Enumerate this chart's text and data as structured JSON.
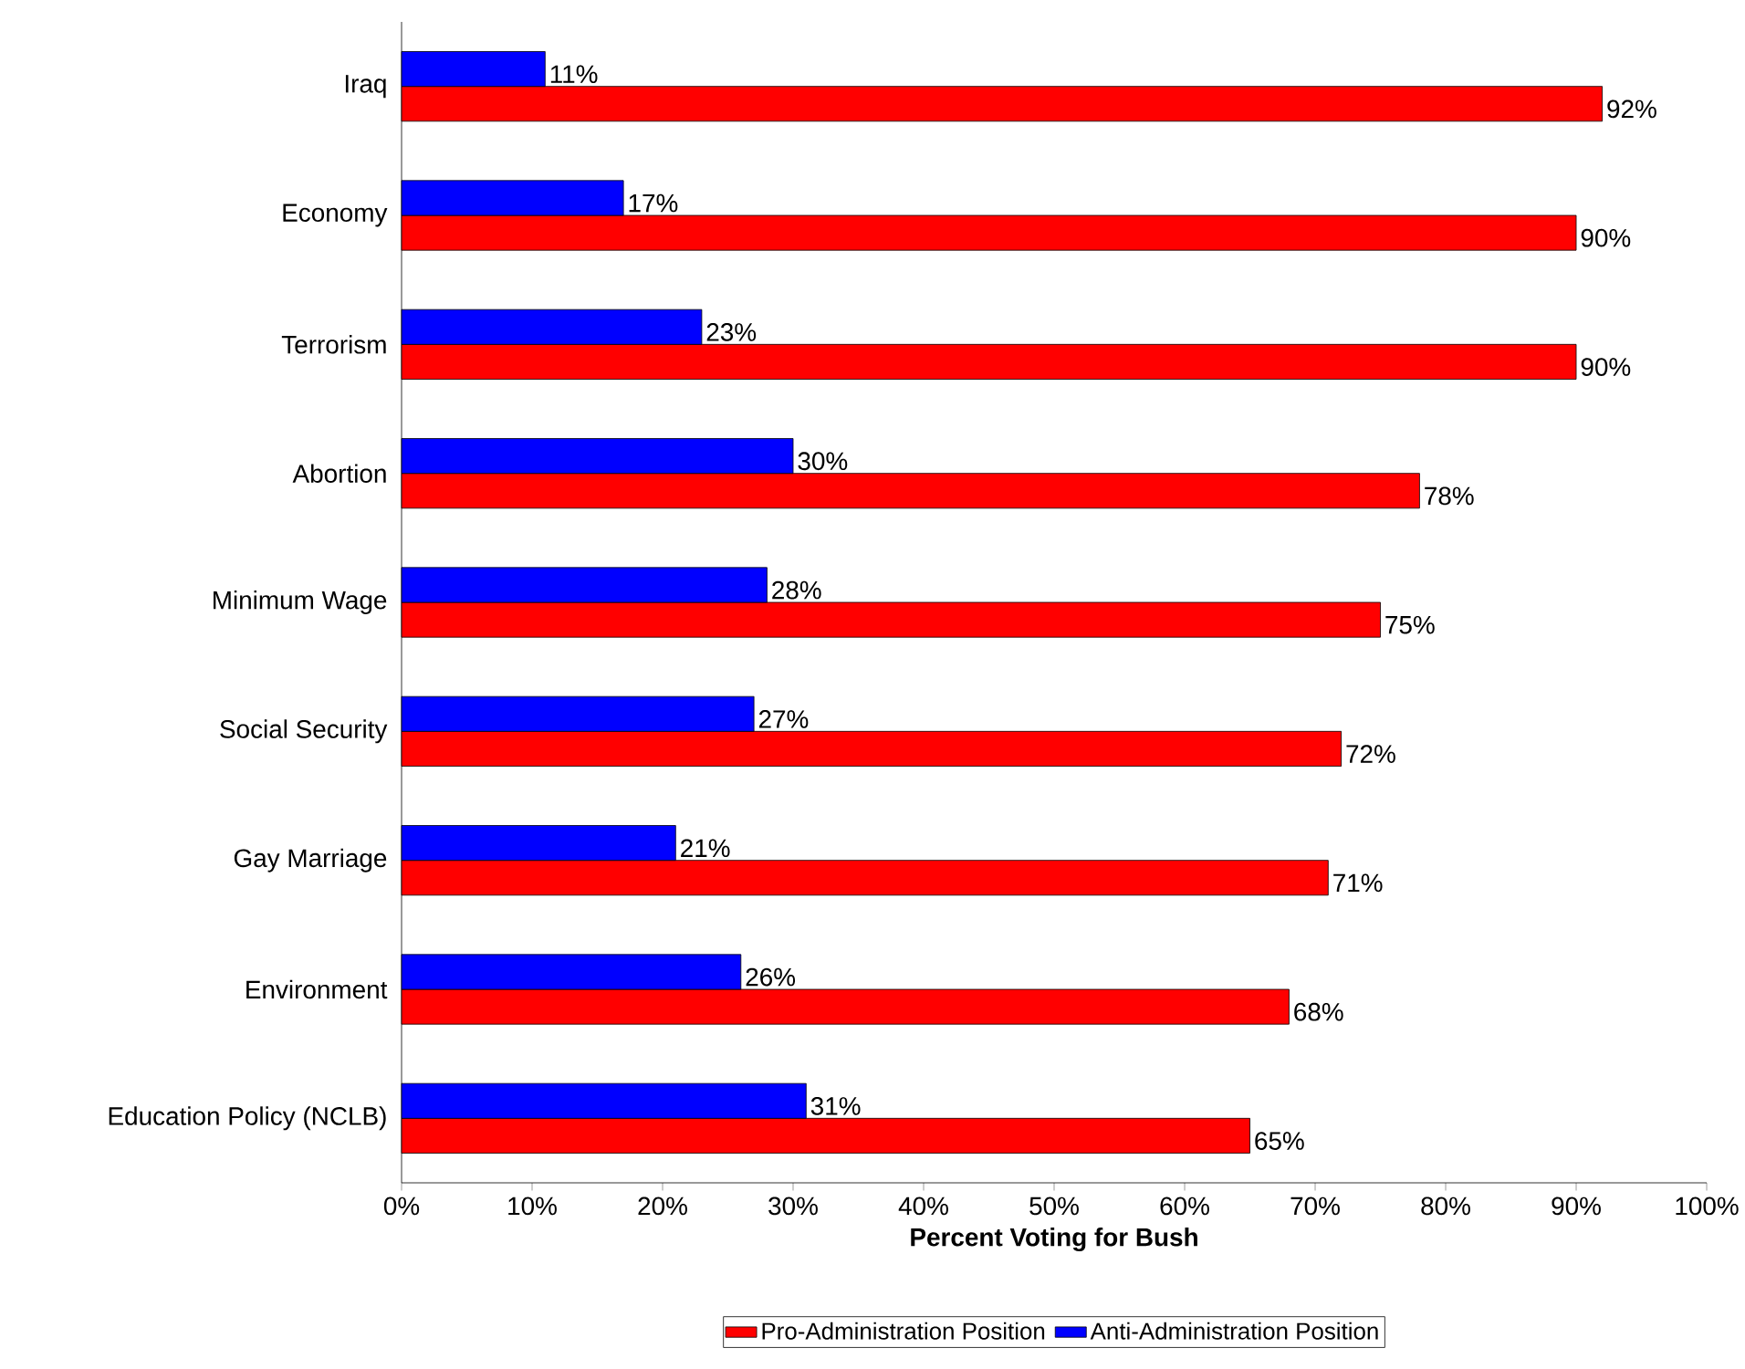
{
  "chart_data": {
    "type": "bar",
    "orientation": "horizontal",
    "xlabel": "Percent Voting for Bush",
    "categories": [
      "Iraq",
      "Economy",
      "Terrorism",
      "Abortion",
      "Minimum Wage",
      "Social Security",
      "Gay Marriage",
      "Environment",
      "Education Policy (NCLB)"
    ],
    "series": [
      {
        "name": "Pro-Administration Position",
        "color": "#ff0000",
        "values": [
          92,
          90,
          90,
          78,
          75,
          72,
          71,
          68,
          65
        ],
        "value_labels": [
          "92%",
          "90%",
          "90%",
          "78%",
          "75%",
          "72%",
          "71%",
          "68%",
          "65%"
        ]
      },
      {
        "name": "Anti-Administration Position",
        "color": "#0000ff",
        "values": [
          11,
          17,
          23,
          30,
          28,
          27,
          21,
          26,
          31
        ],
        "value_labels": [
          "11%",
          "17%",
          "23%",
          "30%",
          "28%",
          "27%",
          "21%",
          "26%",
          "31%"
        ]
      }
    ],
    "xlim": [
      0,
      100
    ],
    "xticks": [
      {
        "value": 0,
        "label": "0%"
      },
      {
        "value": 10,
        "label": "10%"
      },
      {
        "value": 20,
        "label": "20%"
      },
      {
        "value": 30,
        "label": "30%"
      },
      {
        "value": 40,
        "label": "40%"
      },
      {
        "value": 50,
        "label": "50%"
      },
      {
        "value": 60,
        "label": "60%"
      },
      {
        "value": 70,
        "label": "70%"
      },
      {
        "value": 80,
        "label": "80%"
      },
      {
        "value": 90,
        "label": "90%"
      },
      {
        "value": 100,
        "label": "100%"
      }
    ],
    "legend": "bottom"
  }
}
